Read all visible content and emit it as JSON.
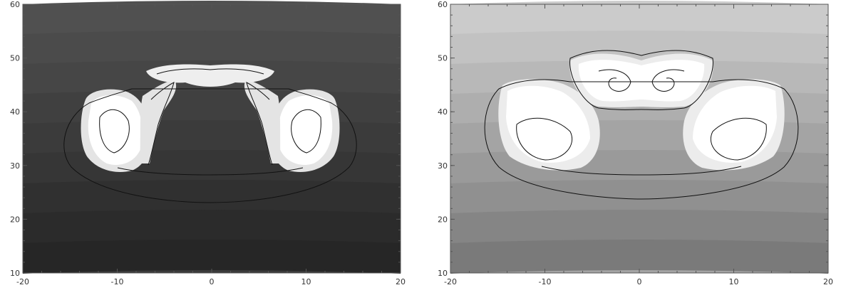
{
  "panels": [
    {
      "id": "left",
      "x_ticks": [
        "-20",
        "-10",
        "0",
        "10",
        "20"
      ],
      "y_ticks": [
        "10",
        "20",
        "30",
        "40",
        "50",
        "60"
      ],
      "x_range": [
        -20,
        20
      ],
      "y_range": [
        10,
        60
      ],
      "background_shades": [
        "#262626",
        "#2b2b2b",
        "#303030",
        "#363636",
        "#3b3b3b",
        "#404040",
        "#464646",
        "#4b4b4b",
        "#505050"
      ],
      "shell_color": "#e4e4e4",
      "core_color": "#ffffff",
      "contour_color": "#111111"
    },
    {
      "id": "right",
      "x_ticks": [
        "-20",
        "-10",
        "0",
        "10",
        "20"
      ],
      "y_ticks": [
        "10",
        "20",
        "30",
        "40",
        "50",
        "60"
      ],
      "x_range": [
        -20,
        20
      ],
      "y_range": [
        10,
        60
      ],
      "background_shades": [
        "#7a7a7a",
        "#858585",
        "#909090",
        "#9a9a9a",
        "#a4a4a4",
        "#aeaeae",
        "#b8b8b8",
        "#c2c2c2",
        "#cbcbcb"
      ],
      "shell_color": "#ececec",
      "core_color": "#ffffff",
      "contour_color": "#111111"
    }
  ]
}
